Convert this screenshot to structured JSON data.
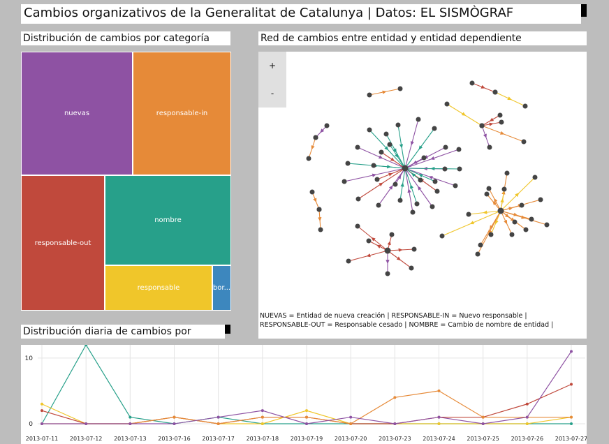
{
  "header": {
    "title": "Cambios organizativos de la Generalitat de Catalunya | Datos: EL SISMÒGRAF"
  },
  "treemap": {
    "title": "Distribución de cambios por categoría",
    "tiles": [
      {
        "label": "nuevas",
        "color": "#8e52a3"
      },
      {
        "label": "responsable-in",
        "color": "#e68a38"
      },
      {
        "label": "responsable-out",
        "color": "#c0493c"
      },
      {
        "label": "nombre",
        "color": "#27a08a"
      },
      {
        "label": "responsable",
        "color": "#f0c62a"
      },
      {
        "label": "bor...",
        "color": "#3d87be"
      }
    ]
  },
  "network": {
    "title": "Red de cambios entre entidad y entidad dependiente",
    "zoom_in": "+",
    "zoom_out": "-",
    "legend_line1": "NUEVAS = Entidad de nueva creación | RESPONSABLE-IN = Nuevo responsable |",
    "legend_line2": "RESPONSABLE-OUT = Responsable cesado | NOMBRE = Cambio de nombre de entidad |"
  },
  "daily": {
    "title": "Distribución diaria de cambios por"
  },
  "chart_data": {
    "type": "line",
    "x": [
      "2013-07-11",
      "2013-07-12",
      "2013-07-13",
      "2013-07-16",
      "2013-07-17",
      "2013-07-18",
      "2013-07-19",
      "2013-07-20",
      "2013-07-23",
      "2013-07-24",
      "2013-07-25",
      "2013-07-26",
      "2013-07-27"
    ],
    "yticks": [
      0,
      10
    ],
    "ylim": [
      0,
      12
    ],
    "grid": true,
    "series": [
      {
        "color": "#27a08a",
        "values": [
          0,
          12,
          1,
          0,
          1,
          0,
          0,
          0,
          0,
          0,
          0,
          0,
          0
        ]
      },
      {
        "color": "#f0c62a",
        "values": [
          3,
          0,
          0,
          1,
          0,
          0,
          2,
          0,
          0,
          0,
          0,
          0,
          1
        ]
      },
      {
        "color": "#c0493c",
        "values": [
          2,
          0,
          0,
          1,
          0,
          1,
          1,
          0,
          0,
          1,
          1,
          3,
          6
        ]
      },
      {
        "color": "#e68a38",
        "values": [
          0,
          0,
          0,
          1,
          0,
          1,
          1,
          0,
          4,
          5,
          1,
          1,
          1
        ]
      },
      {
        "color": "#8e52a3",
        "values": [
          0,
          0,
          0,
          0,
          1,
          2,
          0,
          1,
          0,
          1,
          0,
          1,
          11
        ]
      }
    ]
  }
}
